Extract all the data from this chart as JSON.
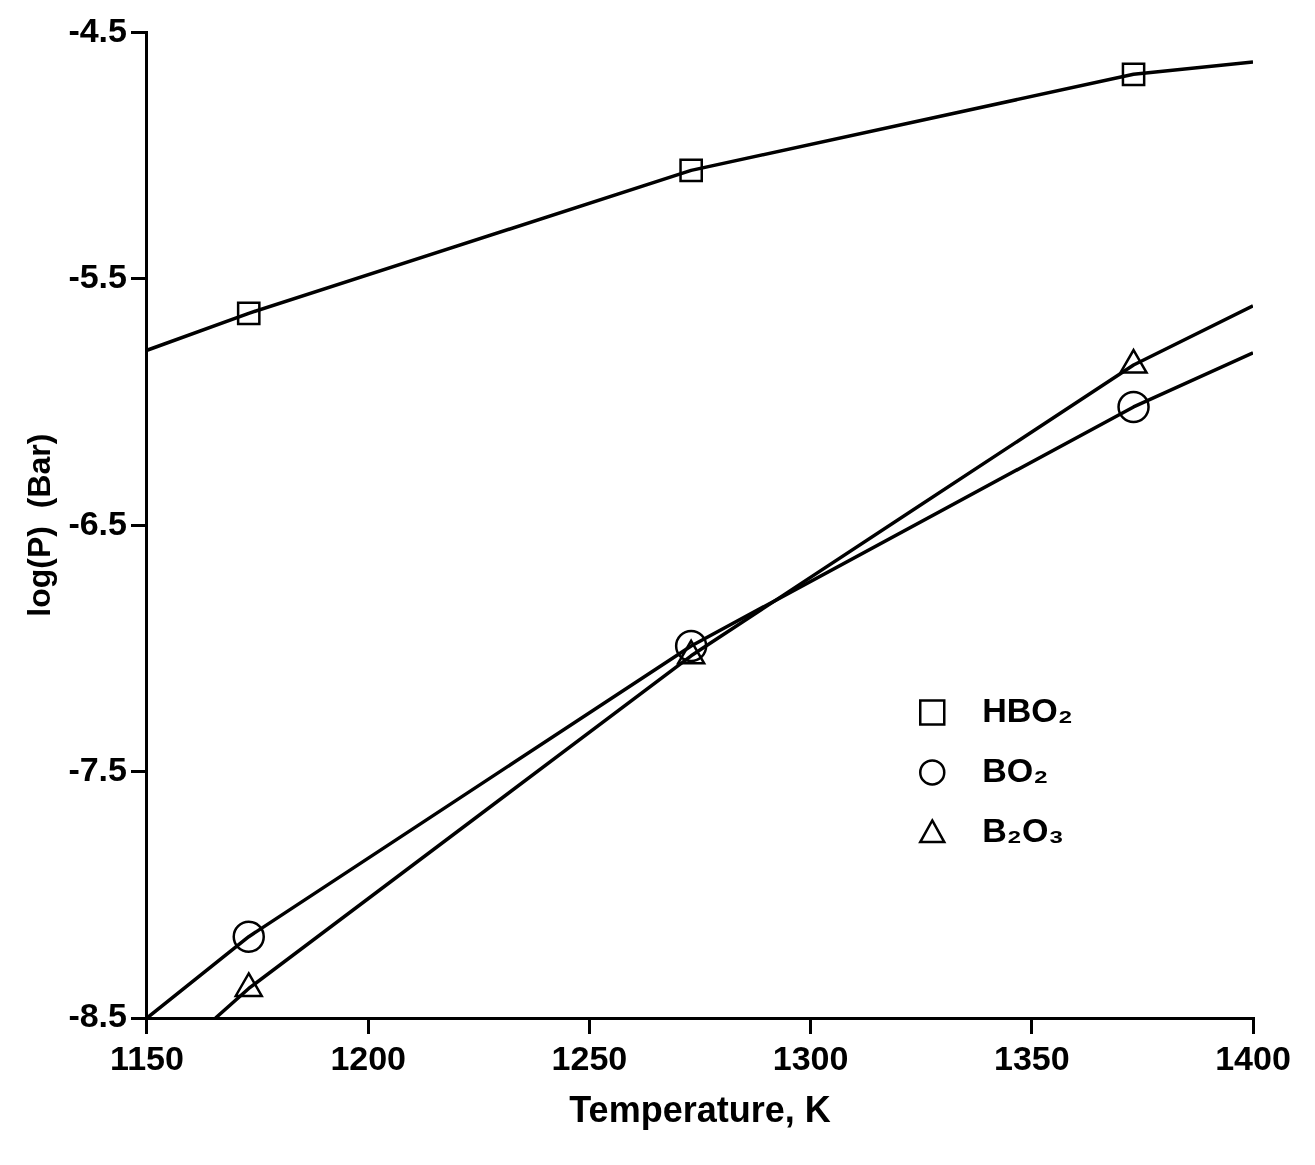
{
  "chart_data": {
    "type": "scatter",
    "xlabel": "Temperature, K",
    "ylabel": "log(P)  (Bar)",
    "xlim": [
      1150,
      1400
    ],
    "xticks": [
      1150,
      1200,
      1250,
      1300,
      1350,
      1400
    ],
    "ylim": [
      -8.5,
      -4.5
    ],
    "yticks": [
      -4.5,
      -5.5,
      -6.5,
      -7.5,
      -8.5
    ],
    "grid": false,
    "legend": "center right",
    "series": [
      {
        "name": "HBO₂",
        "marker": "square",
        "color": "#000000",
        "x": [
          1173,
          1273,
          1373
        ],
        "values": [
          -5.64,
          -5.06,
          -4.67
        ]
      },
      {
        "name": "BO₂",
        "marker": "circle",
        "color": "#000000",
        "x": [
          1173,
          1273,
          1373
        ],
        "values": [
          -8.17,
          -6.99,
          -6.02
        ]
      },
      {
        "name": "B₂O₃",
        "marker": "triangle",
        "color": "#000000",
        "x": [
          1173,
          1273,
          1373
        ],
        "values": [
          -8.38,
          -7.03,
          -5.85
        ]
      },
      {
        "type": "line",
        "marker": "none",
        "color": "#000000",
        "x": [
          1150,
          1173,
          1273,
          1373,
          1400
        ],
        "values": [
          -5.79,
          -5.64,
          -5.06,
          -4.67,
          -4.62
        ]
      },
      {
        "type": "line",
        "marker": "none",
        "color": "#000000",
        "x": [
          1150,
          1173,
          1273,
          1373,
          1400
        ],
        "values": [
          -8.5,
          -8.17,
          -6.99,
          -6.02,
          -5.8
        ]
      },
      {
        "type": "line",
        "marker": "none",
        "color": "#000000",
        "x": [
          1165.5,
          1173,
          1273,
          1373,
          1400
        ],
        "values": [
          -8.5,
          -8.38,
          -7.03,
          -5.85,
          -5.61
        ]
      }
    ]
  }
}
